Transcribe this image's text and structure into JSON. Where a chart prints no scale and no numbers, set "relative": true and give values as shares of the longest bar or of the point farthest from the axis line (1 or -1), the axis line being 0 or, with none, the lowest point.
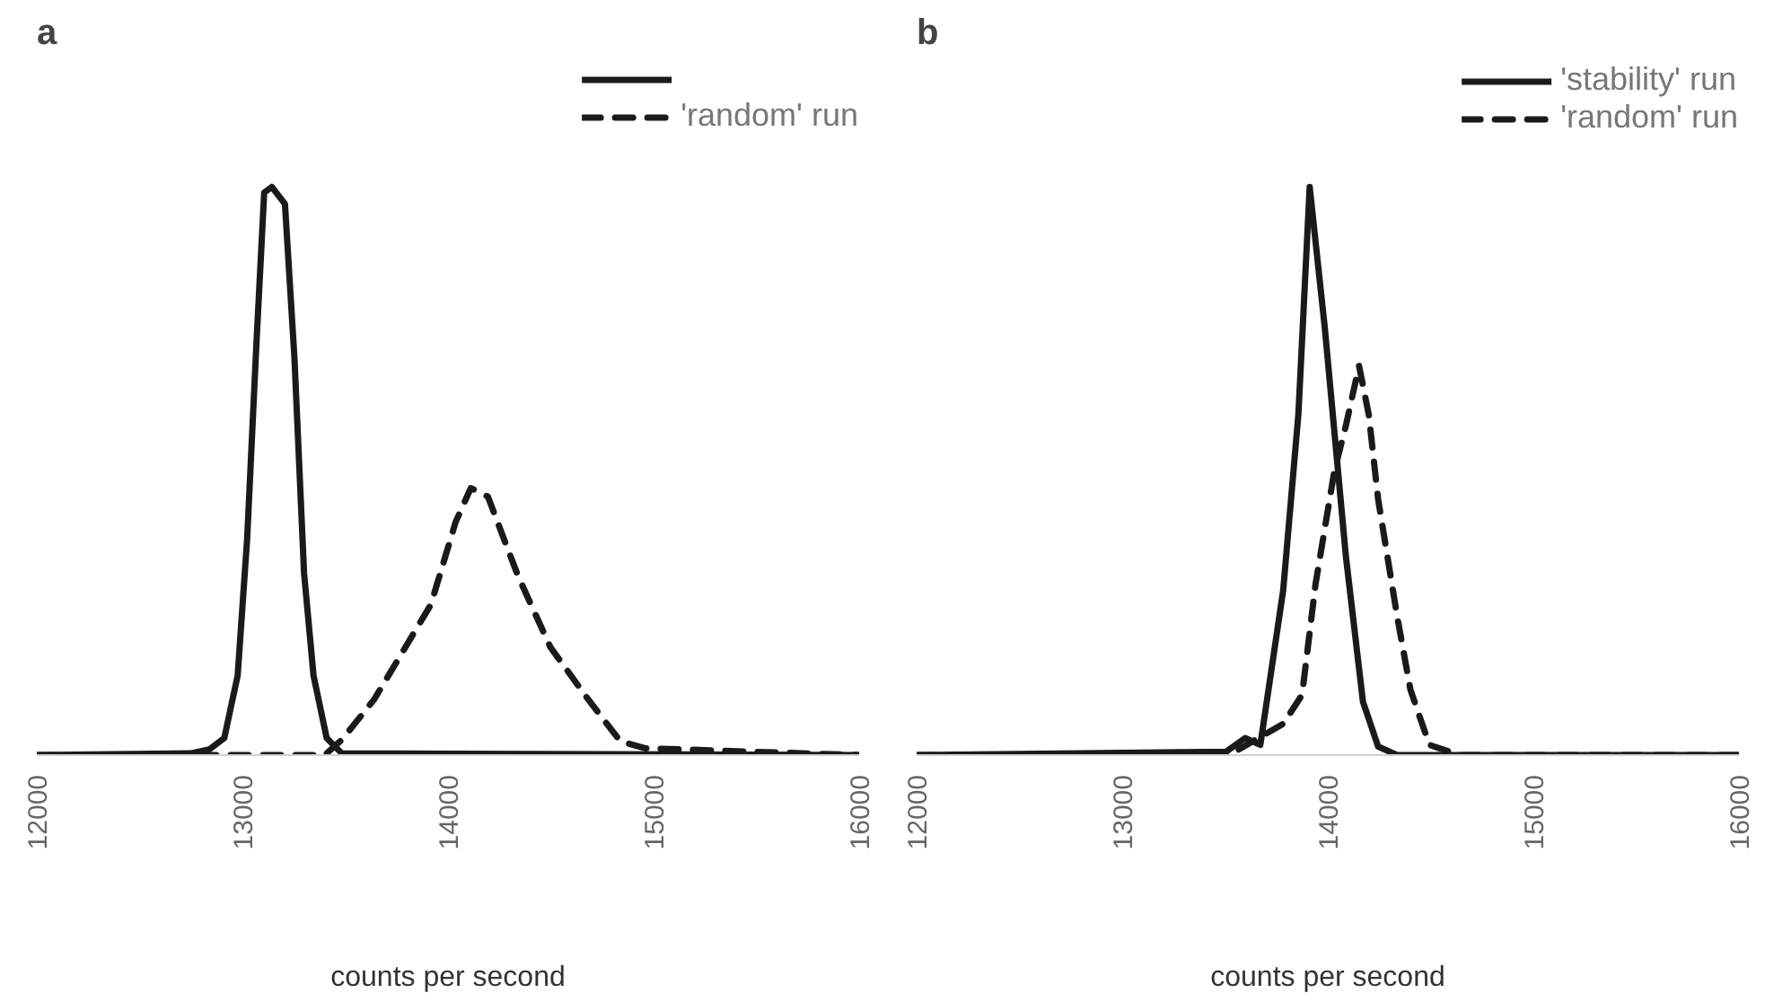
{
  "chart_data": [
    {
      "type": "line",
      "title": "a",
      "xlabel": "counts per second",
      "relative": true,
      "xlim": [
        12000,
        16000
      ],
      "xticks": [
        12000,
        13000,
        14000,
        15000,
        16000
      ],
      "grid": false,
      "legend": "top right",
      "tick_labels": "x",
      "series": [
        {
          "color": "#1a1a1a",
          "line_style": "solid",
          "x": [
            12000,
            12747,
            12839,
            12912,
            12977,
            13023,
            13069,
            13106,
            13143,
            13207,
            13253,
            13300,
            13346,
            13410,
            13484,
            16000
          ],
          "values": [
            0,
            0.003,
            0.01,
            0.03,
            0.14,
            0.38,
            0.73,
            0.99,
            1,
            0.97,
            0.7,
            0.32,
            0.14,
            0.03,
            0.003,
            0
          ]
        },
        {
          "name": "'random' run",
          "color": "#1a1a1a",
          "line_style": "dashed",
          "x": [
            12000,
            13400,
            13484,
            13641,
            13917,
            14037,
            14111,
            14194,
            14341,
            14498,
            14682,
            14839,
            14959,
            16000
          ],
          "values": [
            0,
            0,
            0.027,
            0.098,
            0.265,
            0.41,
            0.47,
            0.455,
            0.315,
            0.19,
            0.098,
            0.024,
            0.012,
            0
          ]
        }
      ]
    },
    {
      "type": "line",
      "title": "b",
      "xlabel": "counts per second",
      "relative": true,
      "xlim": [
        12000,
        16000
      ],
      "xticks": [
        12000,
        13000,
        14000,
        15000,
        16000
      ],
      "grid": false,
      "legend": "top right",
      "tick_labels": "x",
      "series": [
        {
          "name": "'stability' run",
          "color": "#1a1a1a",
          "line_style": "solid",
          "x": [
            12000,
            13506,
            13598,
            13672,
            13783,
            13857,
            13912,
            13986,
            14088,
            14171,
            14245,
            14337,
            16000
          ],
          "values": [
            0,
            0.006,
            0.03,
            0.018,
            0.29,
            0.6,
            1,
            0.75,
            0.35,
            0.094,
            0.015,
            0,
            0
          ]
        },
        {
          "name": "'random' run",
          "color": "#1a1a1a",
          "line_style": "dashed",
          "x": [
            12000,
            13534,
            13783,
            13875,
            13940,
            14032,
            14088,
            14152,
            14199,
            14245,
            14337,
            14402,
            14494,
            14642,
            16000
          ],
          "values": [
            0,
            0.003,
            0.055,
            0.106,
            0.3,
            0.5,
            0.58,
            0.685,
            0.6,
            0.45,
            0.245,
            0.115,
            0.018,
            0,
            0
          ]
        }
      ]
    }
  ]
}
